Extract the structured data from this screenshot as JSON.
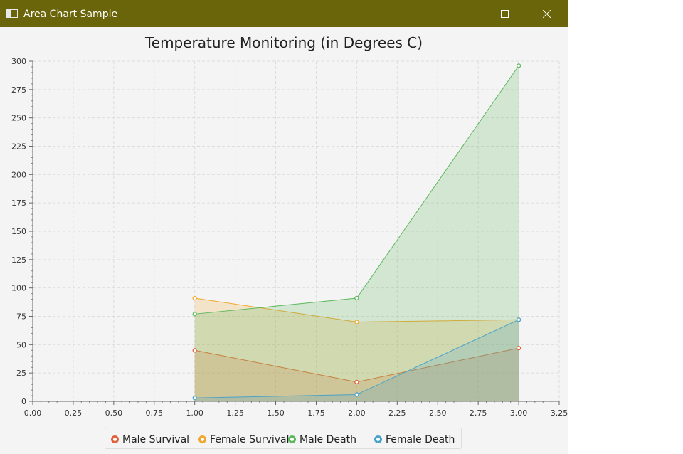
{
  "window": {
    "title": "Area Chart Sample"
  },
  "icons": {
    "app": "app-window-icon",
    "minimize": "minimize-icon",
    "maximize": "maximize-icon",
    "close": "close-icon"
  },
  "chart_data": {
    "type": "area",
    "title": "Temperature Monitoring (in Degrees C)",
    "xlabel": "",
    "ylabel": "",
    "xlim": [
      0,
      3.25
    ],
    "ylim": [
      0,
      300
    ],
    "x_major_step": 0.25,
    "y_major_step": 25,
    "x_tick_labels": [
      "0.00",
      "0.25",
      "0.50",
      "0.75",
      "1.00",
      "1.25",
      "1.50",
      "1.75",
      "2.00",
      "2.25",
      "2.50",
      "2.75",
      "3.00",
      "3.25"
    ],
    "y_tick_labels": [
      "0",
      "25",
      "50",
      "75",
      "100",
      "125",
      "150",
      "175",
      "200",
      "225",
      "250",
      "275",
      "300"
    ],
    "grid": true,
    "legend_position": "bottom",
    "series": [
      {
        "name": "Male Survival",
        "color": "#e0623a",
        "x": [
          1,
          2,
          3
        ],
        "y": [
          45,
          17,
          47
        ]
      },
      {
        "name": "Female Survival",
        "color": "#f0a830",
        "x": [
          1,
          2,
          3
        ],
        "y": [
          91,
          70,
          72
        ]
      },
      {
        "name": "Male Death",
        "color": "#5cb85c",
        "x": [
          1,
          2,
          3
        ],
        "y": [
          77,
          91,
          296
        ]
      },
      {
        "name": "Female Death",
        "color": "#4aa3c8",
        "x": [
          1,
          2,
          3
        ],
        "y": [
          3,
          6,
          72
        ]
      }
    ]
  }
}
